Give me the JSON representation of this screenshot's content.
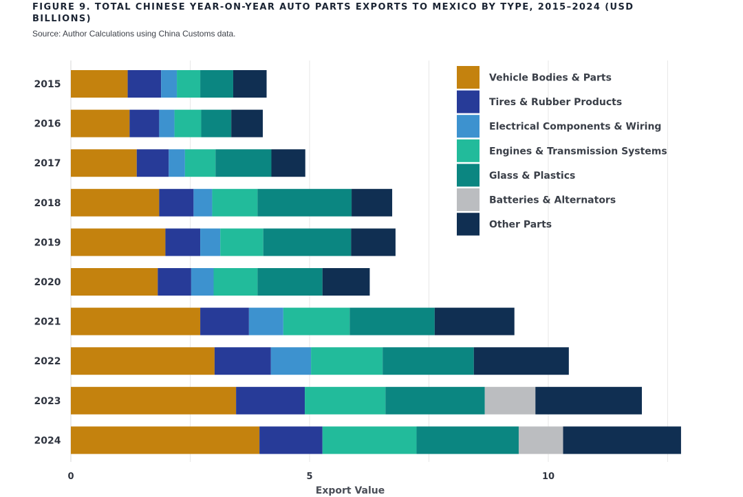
{
  "header": {
    "title": "FIGURE 9. TOTAL CHINESE YEAR-ON-YEAR AUTO PARTS EXPORTS TO MEXICO BY TYPE, 2015–2024 (USD BILLIONS)",
    "source": "Source: Author Calculations using China Customs data."
  },
  "chart_data": {
    "type": "bar",
    "orientation": "horizontal",
    "stacked": true,
    "title": "FIGURE 9. TOTAL CHINESE YEAR-ON-YEAR AUTO PARTS EXPORTS TO MEXICO BY TYPE, 2015–2024 (USD BILLIONS)",
    "xlabel": "Export Value",
    "ylabel": "",
    "xlim": [
      0,
      12.8
    ],
    "xticks": [
      0,
      5,
      10
    ],
    "grid": true,
    "legend_position": "top-right",
    "categories": [
      "2015",
      "2016",
      "2017",
      "2018",
      "2019",
      "2020",
      "2021",
      "2022",
      "2023",
      "2024"
    ],
    "series": [
      {
        "name": "Vehicle Bodies & Parts",
        "color": "#c4820e",
        "values": [
          1.19,
          1.23,
          1.38,
          1.85,
          1.98,
          1.82,
          2.71,
          3.01,
          3.46,
          3.95
        ]
      },
      {
        "name": "Tires & Rubber Products",
        "color": "#273b98",
        "values": [
          0.7,
          0.62,
          0.67,
          0.72,
          0.73,
          0.7,
          1.02,
          1.18,
          1.44,
          1.32
        ]
      },
      {
        "name": "Electrical Components & Wiring",
        "color": "#3d92cf",
        "values": [
          0.33,
          0.32,
          0.34,
          0.39,
          0.42,
          0.47,
          0.72,
          0.84,
          0,
          0
        ]
      },
      {
        "name": "Engines & Transmission Systems",
        "color": "#22bb9b",
        "values": [
          0.49,
          0.56,
          0.64,
          0.95,
          0.9,
          0.92,
          1.39,
          1.5,
          1.69,
          1.97
        ]
      },
      {
        "name": "Glass & Plastics",
        "color": "#0b8681",
        "values": [
          0.69,
          0.63,
          1.17,
          1.97,
          1.84,
          1.36,
          1.78,
          1.91,
          2.08,
          2.14
        ]
      },
      {
        "name": "Batteries & Alternators",
        "color": "#bbbdc0",
        "values": [
          0,
          0,
          0,
          0,
          0,
          0,
          0,
          0,
          1.06,
          0.93
        ]
      },
      {
        "name": "Other Parts",
        "color": "#102f52",
        "values": [
          0.7,
          0.66,
          0.71,
          0.85,
          0.93,
          0.99,
          1.67,
          1.99,
          2.23,
          2.47
        ]
      }
    ]
  }
}
